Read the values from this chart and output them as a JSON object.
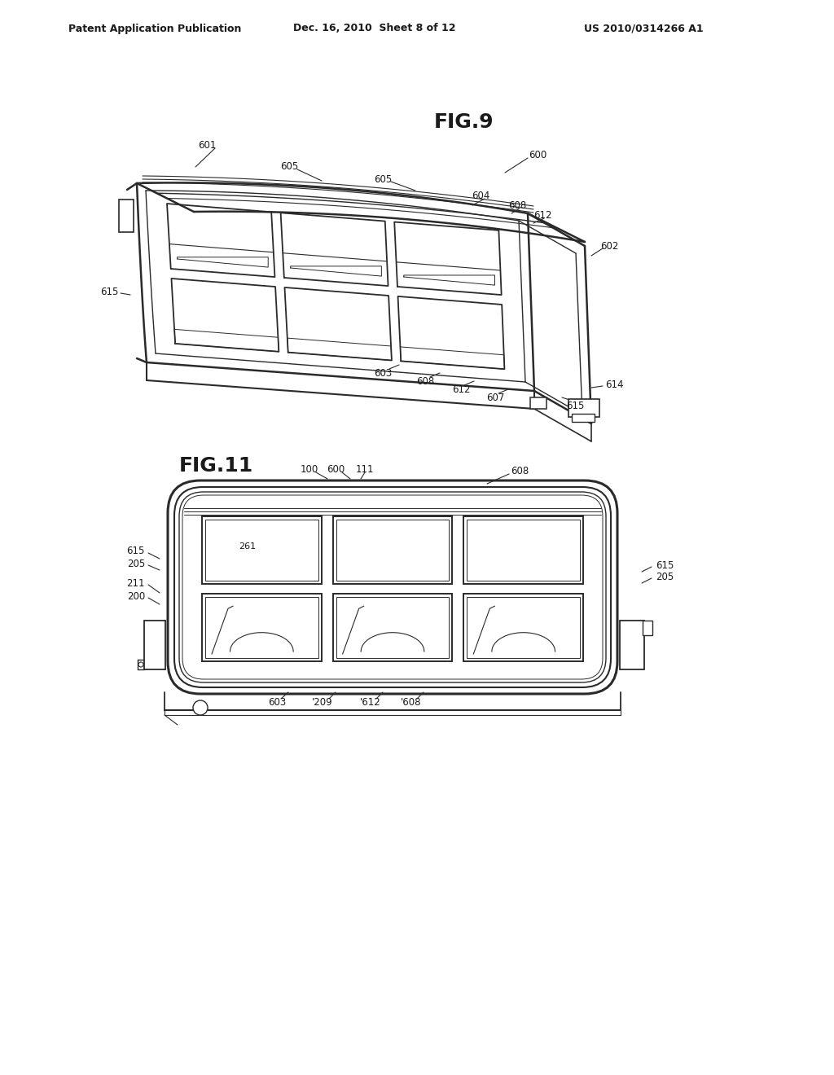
{
  "background_color": "#ffffff",
  "header_left": "Patent Application Publication",
  "header_center": "Dec. 16, 2010  Sheet 8 of 12",
  "header_right": "US 2010/0314266 A1",
  "fig9_title": "FIG.9",
  "fig11_title": "FIG.11",
  "line_color": "#2a2a2a",
  "text_color": "#1a1a1a",
  "lw_outer": 1.8,
  "lw_inner": 1.0,
  "lw_cell": 1.2,
  "fontsize_label": 8.5,
  "fontsize_title": 18
}
